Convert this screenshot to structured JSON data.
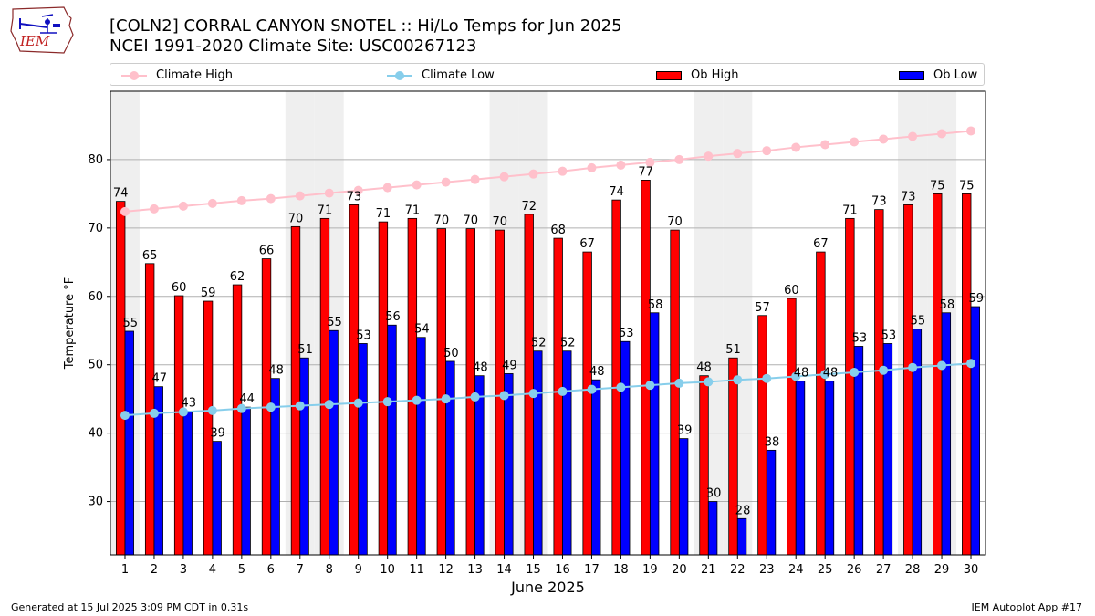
{
  "header": {
    "title_line1": "[COLN2] CORRAL CANYON SNOTEL :: Hi/Lo Temps for Jun 2025",
    "title_line2": "NCEI 1991-2020 Climate Site: USC00267123",
    "logo_text": "IEM"
  },
  "legend": {
    "items": [
      {
        "label": "Climate High",
        "kind": "line",
        "color": "#ffc0cb"
      },
      {
        "label": "Climate Low",
        "kind": "line",
        "color": "#87ceeb"
      },
      {
        "label": "Ob High",
        "kind": "box",
        "color": "#ff0000"
      },
      {
        "label": "Ob Low",
        "kind": "box",
        "color": "#0000ff"
      }
    ]
  },
  "chart_data": {
    "type": "bar",
    "xlabel": "June 2025",
    "ylabel": "Temperature °F",
    "ylim": [
      22.2,
      90.0
    ],
    "yticks": [
      30,
      40,
      50,
      60,
      70,
      80
    ],
    "grid": true,
    "legend_position": "top",
    "categories": [
      "1",
      "2",
      "3",
      "4",
      "5",
      "6",
      "7",
      "8",
      "9",
      "10",
      "11",
      "12",
      "13",
      "14",
      "15",
      "16",
      "17",
      "18",
      "19",
      "20",
      "21",
      "22",
      "23",
      "24",
      "25",
      "26",
      "27",
      "28",
      "29",
      "30"
    ],
    "weekend_shading_days": [
      1,
      7,
      8,
      14,
      15,
      21,
      22,
      28,
      29
    ],
    "series": [
      {
        "name": "Ob High",
        "kind": "bar",
        "color": "#ff0000",
        "values": [
          73.9,
          64.8,
          60.1,
          59.3,
          61.7,
          65.5,
          70.2,
          71.4,
          73.4,
          70.9,
          71.4,
          69.9,
          69.9,
          69.7,
          72.0,
          68.5,
          66.5,
          74.1,
          77.0,
          69.7,
          48.4,
          51.0,
          57.2,
          59.7,
          66.5,
          71.4,
          72.7,
          73.4,
          75.0,
          75.0
        ],
        "labels": [
          "74",
          "65",
          "60",
          "59",
          "62",
          "66",
          "70",
          "71",
          "73",
          "71",
          "71",
          "70",
          "70",
          "70",
          "72",
          "68",
          "67",
          "74",
          "77",
          "70",
          "48",
          "51",
          "57",
          "60",
          "67",
          "71",
          "73",
          "73",
          "75",
          "75"
        ]
      },
      {
        "name": "Ob Low",
        "kind": "bar",
        "color": "#0000ff",
        "values": [
          54.9,
          46.8,
          43.2,
          38.8,
          43.8,
          48.0,
          51.0,
          55.0,
          53.1,
          55.8,
          54.0,
          50.5,
          48.4,
          48.7,
          52.0,
          52.0,
          47.8,
          53.4,
          57.6,
          39.2,
          30.0,
          27.5,
          37.5,
          47.6,
          47.6,
          52.7,
          53.1,
          55.2,
          57.6,
          58.5
        ],
        "labels": [
          "55",
          "47",
          "43",
          "39",
          "44",
          "48",
          "51",
          "55",
          "53",
          "56",
          "54",
          "50",
          "48",
          "49",
          "52",
          "52",
          "48",
          "53",
          "58",
          "39",
          "30",
          "28",
          "38",
          "48",
          "48",
          "53",
          "53",
          "55",
          "58",
          "59"
        ]
      },
      {
        "name": "Climate High",
        "kind": "line",
        "color": "#ffc0cb",
        "values": [
          72.4,
          72.8,
          73.2,
          73.6,
          74.0,
          74.3,
          74.7,
          75.1,
          75.5,
          75.9,
          76.3,
          76.7,
          77.1,
          77.5,
          77.9,
          78.3,
          78.8,
          79.2,
          79.6,
          80.0,
          80.5,
          80.9,
          81.3,
          81.8,
          82.2,
          82.6,
          83.0,
          83.4,
          83.8,
          84.2
        ]
      },
      {
        "name": "Climate Low",
        "kind": "line",
        "color": "#87ceeb",
        "values": [
          42.6,
          42.9,
          43.1,
          43.3,
          43.6,
          43.8,
          44.0,
          44.2,
          44.4,
          44.6,
          44.8,
          45.0,
          45.3,
          45.5,
          45.8,
          46.1,
          46.4,
          46.7,
          47.0,
          47.3,
          47.5,
          47.8,
          48.0,
          48.3,
          48.6,
          48.9,
          49.2,
          49.6,
          49.9,
          50.2
        ]
      }
    ]
  },
  "footer": {
    "left": "Generated at 15 Jul 2025 3:09 PM CDT in 0.31s",
    "right": "IEM Autoplot App #17"
  }
}
